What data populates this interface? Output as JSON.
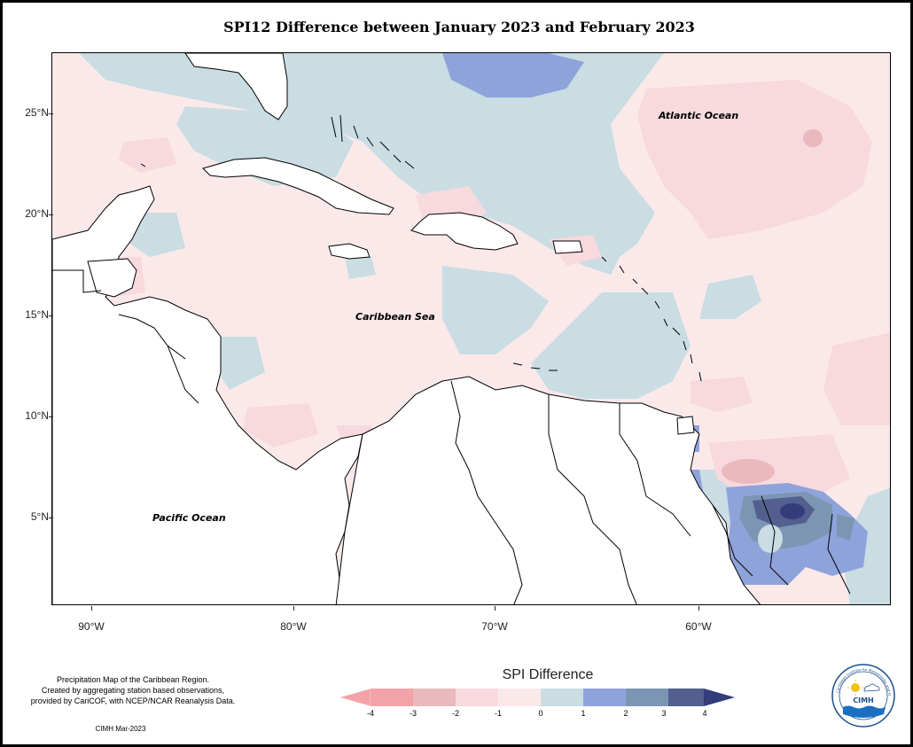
{
  "title": "SPI12 Difference between January 2023 and February 2023",
  "map_labels": {
    "atlantic": "Atlantic Ocean",
    "caribbean": "Caribbean Sea",
    "pacific": "Pacific Ocean"
  },
  "axes": {
    "lat_ticks": [
      "25°N",
      "20°N",
      "15°N",
      "10°N",
      "5°N"
    ],
    "lon_ticks": [
      "90°W",
      "80°W",
      "70°W",
      "60°W"
    ]
  },
  "legend": {
    "title": "SPI Difference",
    "ticks": [
      "-4",
      "-3",
      "-2",
      "-1",
      "0",
      "1",
      "2",
      "3",
      "4"
    ],
    "colors": [
      "#f3a3a8",
      "#e9b9bd",
      "#f7d9de",
      "#fbe9ea",
      "#c9dde3",
      "#8fa3db",
      "#7b95b3",
      "#525f8f",
      "#333d7a"
    ]
  },
  "description": {
    "line1": "Precipitation Map of the Caribbean Region.",
    "line2": "Created by aggregating station based observations,",
    "line3": "provided by CariCOF, with NCEP/NCAR Reanalysis Data."
  },
  "credit": "CIMH Mar-2023",
  "logo_text": "CIMH",
  "logo_ring_text": "Caribbean Institute for Meteorology and Hydrology"
}
